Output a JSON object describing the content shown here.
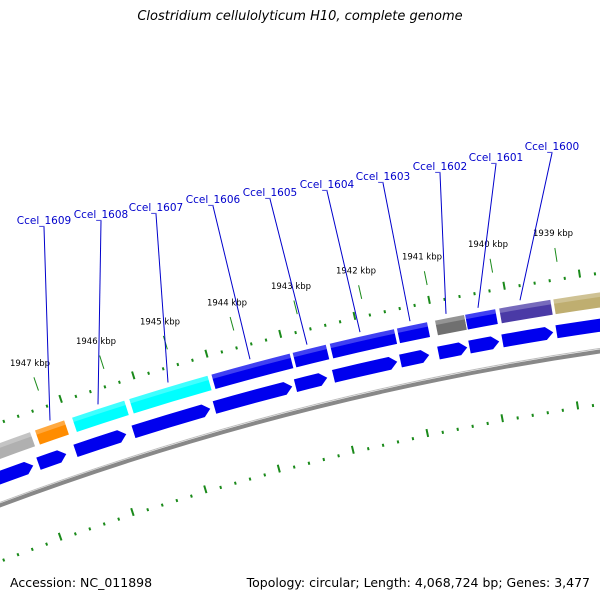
{
  "title": "Clostridium cellulolyticum H10, complete genome",
  "footer": {
    "accession": "Accession: NC_011898",
    "summary": "Topology: circular; Length: 4,068,724 bp; Genes: 3,477"
  },
  "ruler": {
    "unit": "kbp",
    "labels": [
      "1947 kbp",
      "1946 kbp",
      "1945 kbp",
      "1944 kbp",
      "1943 kbp",
      "1942 kbp",
      "1941 kbp",
      "1940 kbp",
      "1939 kbp"
    ]
  },
  "genes": [
    {
      "locus": "Ccel_1609"
    },
    {
      "locus": "Ccel_1608"
    },
    {
      "locus": "Ccel_1607"
    },
    {
      "locus": "Ccel_1606"
    },
    {
      "locus": "Ccel_1605"
    },
    {
      "locus": "Ccel_1604"
    },
    {
      "locus": "Ccel_1603"
    },
    {
      "locus": "Ccel_1602"
    },
    {
      "locus": "Ccel_1601"
    },
    {
      "locus": "Ccel_1600"
    }
  ],
  "colors": {
    "tick": "#1a8a1a",
    "label": "#0000cc",
    "cds": "#0000ee",
    "backbone": "#888888"
  }
}
